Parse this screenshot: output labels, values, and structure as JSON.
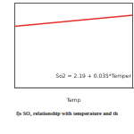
{
  "chart_data": {
    "type": "line",
    "x_label": "Temp",
    "annotation": "So2 = 2.19 + 0.035*Temper",
    "x": [
      20,
      35
    ],
    "values": [
      2.89,
      3.415
    ],
    "color": "#e8302a",
    "xlim": [
      20,
      35
    ],
    "ylim": [
      0,
      4
    ],
    "grid": false,
    "tick_labels": false
  },
  "caption": "l)s SO₂ relationship with temperature and th"
}
